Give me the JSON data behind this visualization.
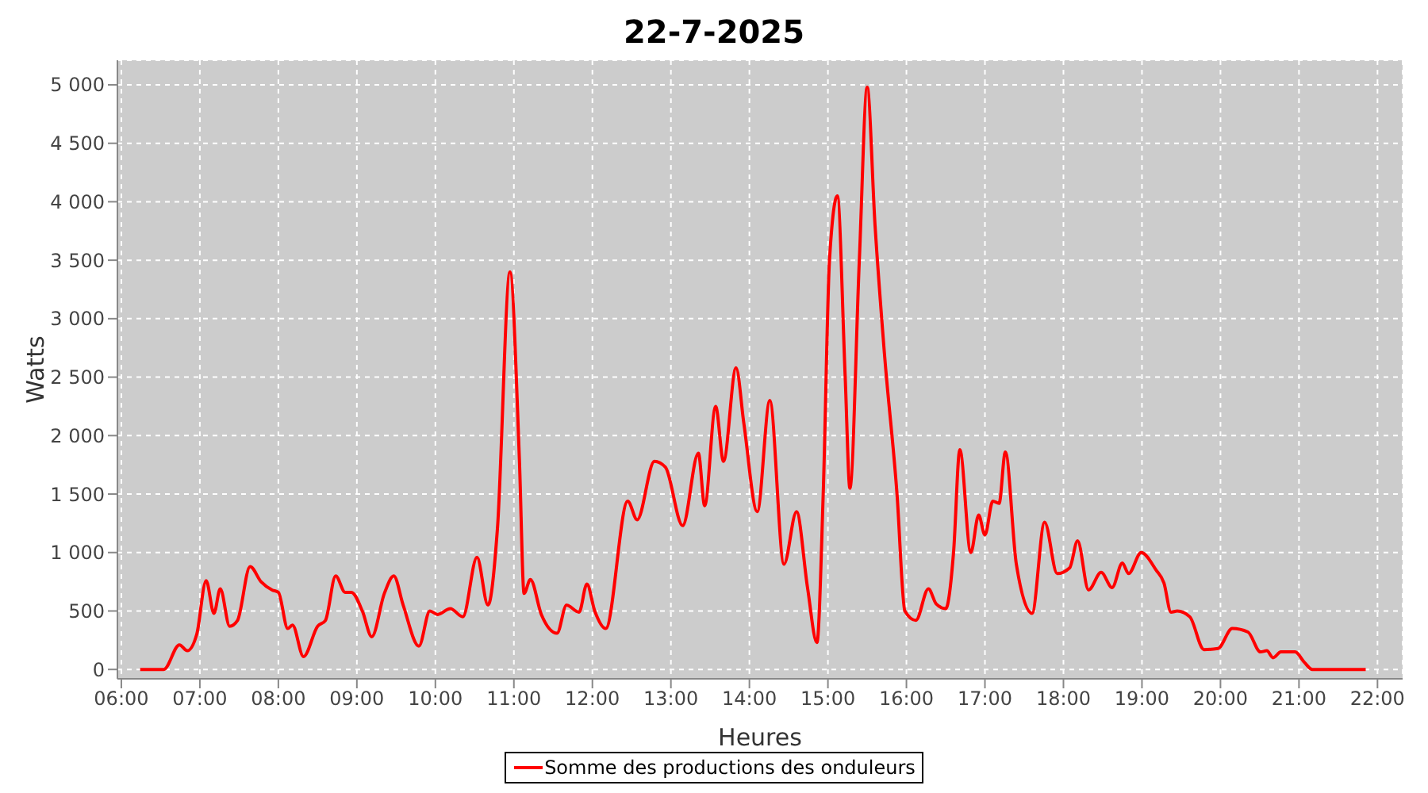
{
  "chart_data": {
    "type": "line",
    "title": "22-7-2025",
    "xlabel": "Heures",
    "ylabel": "Watts",
    "xlim": [
      5.95,
      22.32
    ],
    "ylim": [
      -80,
      5210
    ],
    "xticks": [
      {
        "value": 6,
        "label": "06:00"
      },
      {
        "value": 7,
        "label": "07:00"
      },
      {
        "value": 8,
        "label": "08:00"
      },
      {
        "value": 9,
        "label": "09:00"
      },
      {
        "value": 10,
        "label": "10:00"
      },
      {
        "value": 11,
        "label": "11:00"
      },
      {
        "value": 12,
        "label": "12:00"
      },
      {
        "value": 13,
        "label": "13:00"
      },
      {
        "value": 14,
        "label": "14:00"
      },
      {
        "value": 15,
        "label": "15:00"
      },
      {
        "value": 16,
        "label": "16:00"
      },
      {
        "value": 17,
        "label": "17:00"
      },
      {
        "value": 18,
        "label": "18:00"
      },
      {
        "value": 19,
        "label": "19:00"
      },
      {
        "value": 20,
        "label": "20:00"
      },
      {
        "value": 21,
        "label": "21:00"
      },
      {
        "value": 22,
        "label": "22:00"
      }
    ],
    "yticks": [
      0,
      500,
      {
        "value": 1000,
        "label": "1 000"
      },
      {
        "value": 1500,
        "label": "1 500"
      },
      {
        "value": 2000,
        "label": "2 000"
      },
      {
        "value": 2500,
        "label": "2 500"
      },
      {
        "value": 3000,
        "label": "3 000"
      },
      {
        "value": 3500,
        "label": "3 500"
      },
      {
        "value": 4000,
        "label": "4 000"
      },
      {
        "value": 4500,
        "label": "4 500"
      },
      {
        "value": 5000,
        "label": "5 000"
      }
    ],
    "grid": true,
    "legend": "bottom",
    "marker": "none",
    "line_style": "solid",
    "x": [
      6.24,
      6.54,
      6.74,
      6.84,
      6.96,
      7.08,
      7.18,
      7.26,
      7.38,
      7.48,
      7.64,
      7.78,
      7.92,
      8.0,
      8.12,
      8.18,
      8.32,
      8.5,
      8.6,
      8.73,
      8.85,
      8.93,
      9.07,
      9.19,
      9.35,
      9.47,
      9.59,
      9.79,
      9.93,
      10.03,
      10.19,
      10.35,
      10.53,
      10.67,
      10.79,
      10.95,
      11.07,
      11.13,
      11.21,
      11.35,
      11.55,
      11.67,
      11.83,
      11.93,
      12.03,
      12.17,
      12.45,
      12.57,
      12.79,
      12.93,
      13.15,
      13.35,
      13.43,
      13.57,
      13.67,
      13.83,
      13.93,
      14.1,
      14.26,
      14.44,
      14.6,
      14.74,
      14.86,
      14.94,
      15.02,
      15.12,
      15.22,
      15.28,
      15.4,
      15.5,
      15.6,
      15.72,
      15.88,
      15.98,
      16.12,
      16.28,
      16.38,
      16.5,
      16.6,
      16.68,
      16.82,
      16.92,
      17.0,
      17.1,
      17.18,
      17.26,
      17.4,
      17.6,
      17.76,
      17.92,
      18.08,
      18.18,
      18.32,
      18.48,
      18.62,
      18.75,
      18.83,
      18.99,
      19.18,
      19.28,
      19.37,
      19.45,
      19.61,
      19.79,
      19.97,
      20.15,
      20.35,
      20.51,
      20.59,
      20.67,
      20.77,
      20.95,
      21.07,
      21.17,
      21.85
    ],
    "series": [
      {
        "name": "Somme des productions des onduleurs",
        "color": "#ff0000",
        "values": [
          0,
          0,
          210,
          160,
          300,
          760,
          480,
          690,
          370,
          420,
          880,
          750,
          680,
          660,
          350,
          380,
          110,
          370,
          420,
          800,
          660,
          660,
          500,
          280,
          650,
          800,
          550,
          200,
          500,
          470,
          520,
          450,
          960,
          550,
          1200,
          3400,
          1800,
          650,
          770,
          470,
          310,
          550,
          490,
          730,
          500,
          350,
          1440,
          1280,
          1780,
          1730,
          1230,
          1850,
          1400,
          2250,
          1780,
          2580,
          2100,
          1350,
          2300,
          900,
          1350,
          700,
          230,
          1500,
          3500,
          4050,
          2500,
          1550,
          3500,
          4980,
          3800,
          2700,
          1500,
          500,
          420,
          690,
          560,
          520,
          1000,
          1880,
          1000,
          1320,
          1150,
          1440,
          1420,
          1860,
          900,
          480,
          1260,
          820,
          870,
          1100,
          680,
          830,
          700,
          910,
          820,
          1000,
          850,
          740,
          490,
          500,
          450,
          170,
          180,
          350,
          320,
          150,
          160,
          100,
          150,
          150,
          60,
          0,
          0
        ]
      }
    ]
  }
}
